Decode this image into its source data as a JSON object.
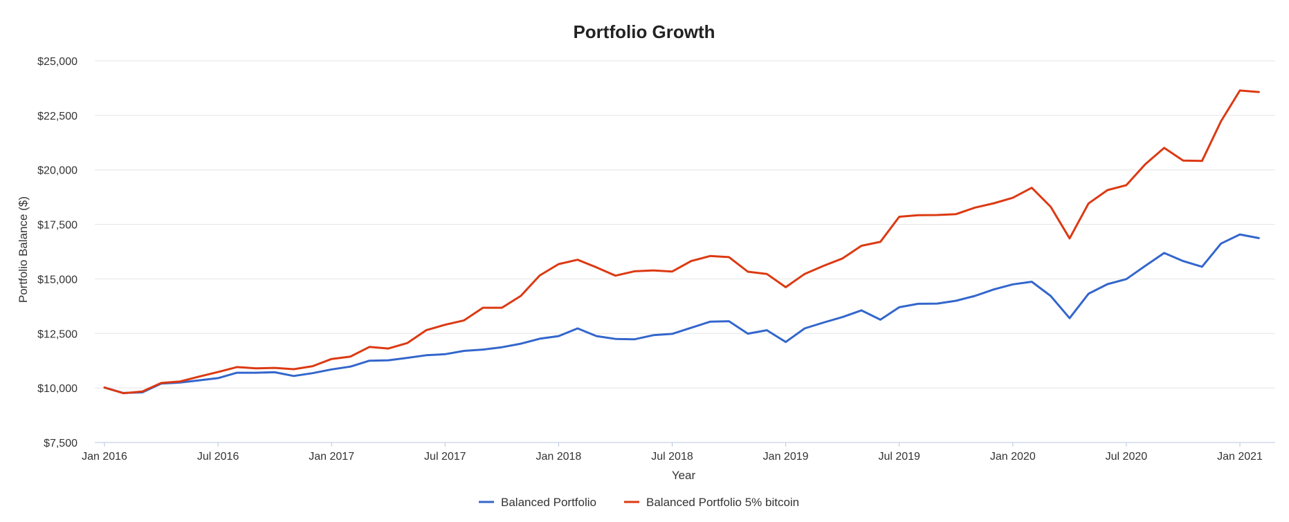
{
  "chart_data": {
    "type": "line",
    "title": "Portfolio Growth",
    "xlabel": "Year",
    "ylabel": "Portfolio Balance ($)",
    "ylim": [
      7500,
      25000
    ],
    "y_ticks": [
      "$7,500",
      "$10,000",
      "$12,500",
      "$15,000",
      "$17,500",
      "$20,000",
      "$22,500",
      "$25,000"
    ],
    "y_tick_values": [
      7500,
      10000,
      12500,
      15000,
      17500,
      20000,
      22500,
      25000
    ],
    "x_ticks": [
      "Jan 2016",
      "Jul 2016",
      "Jan 2017",
      "Jul 2017",
      "Jan 2018",
      "Jul 2018",
      "Jan 2019",
      "Jul 2019",
      "Jan 2020",
      "Jul 2020",
      "Jan 2021"
    ],
    "x_start": "2016-01",
    "x_end": "2021-02",
    "legend_position": "bottom-center",
    "grid": true,
    "series": [
      {
        "name": "Balanced Portfolio",
        "color": "#3366cc",
        "values": [
          10020,
          9770,
          9800,
          10200,
          10250,
          10350,
          10450,
          10700,
          10700,
          10720,
          10550,
          10680,
          10850,
          10980,
          11250,
          11270,
          11380,
          11500,
          11550,
          11700,
          11760,
          11870,
          12030,
          12260,
          12380,
          12730,
          12380,
          12250,
          12230,
          12420,
          12480,
          12760,
          13040,
          13060,
          12490,
          12650,
          12110,
          12730,
          13000,
          13250,
          13560,
          13130,
          13700,
          13860,
          13870,
          14000,
          14220,
          14520,
          14750,
          14870,
          14220,
          13200,
          14320,
          14760,
          14990,
          15600,
          16190,
          15820,
          15560,
          16620,
          17040,
          16870
        ]
      },
      {
        "name": "Balanced Portfolio 5% bitcoin",
        "color": "#dc3912",
        "values": [
          10020,
          9760,
          9840,
          10230,
          10300,
          10520,
          10730,
          10960,
          10900,
          10920,
          10860,
          11000,
          11330,
          11440,
          11880,
          11810,
          12060,
          12650,
          12900,
          13100,
          13680,
          13680,
          14220,
          15160,
          15680,
          15880,
          15530,
          15150,
          15350,
          15390,
          15340,
          15820,
          16050,
          16000,
          15330,
          15230,
          14620,
          15230,
          15600,
          15940,
          16520,
          16700,
          17850,
          17920,
          17930,
          17970,
          18270,
          18470,
          18720,
          19180,
          18310,
          16860,
          18460,
          19070,
          19300,
          20260,
          21010,
          20430,
          20410,
          22230,
          23640,
          23570
        ]
      }
    ]
  }
}
